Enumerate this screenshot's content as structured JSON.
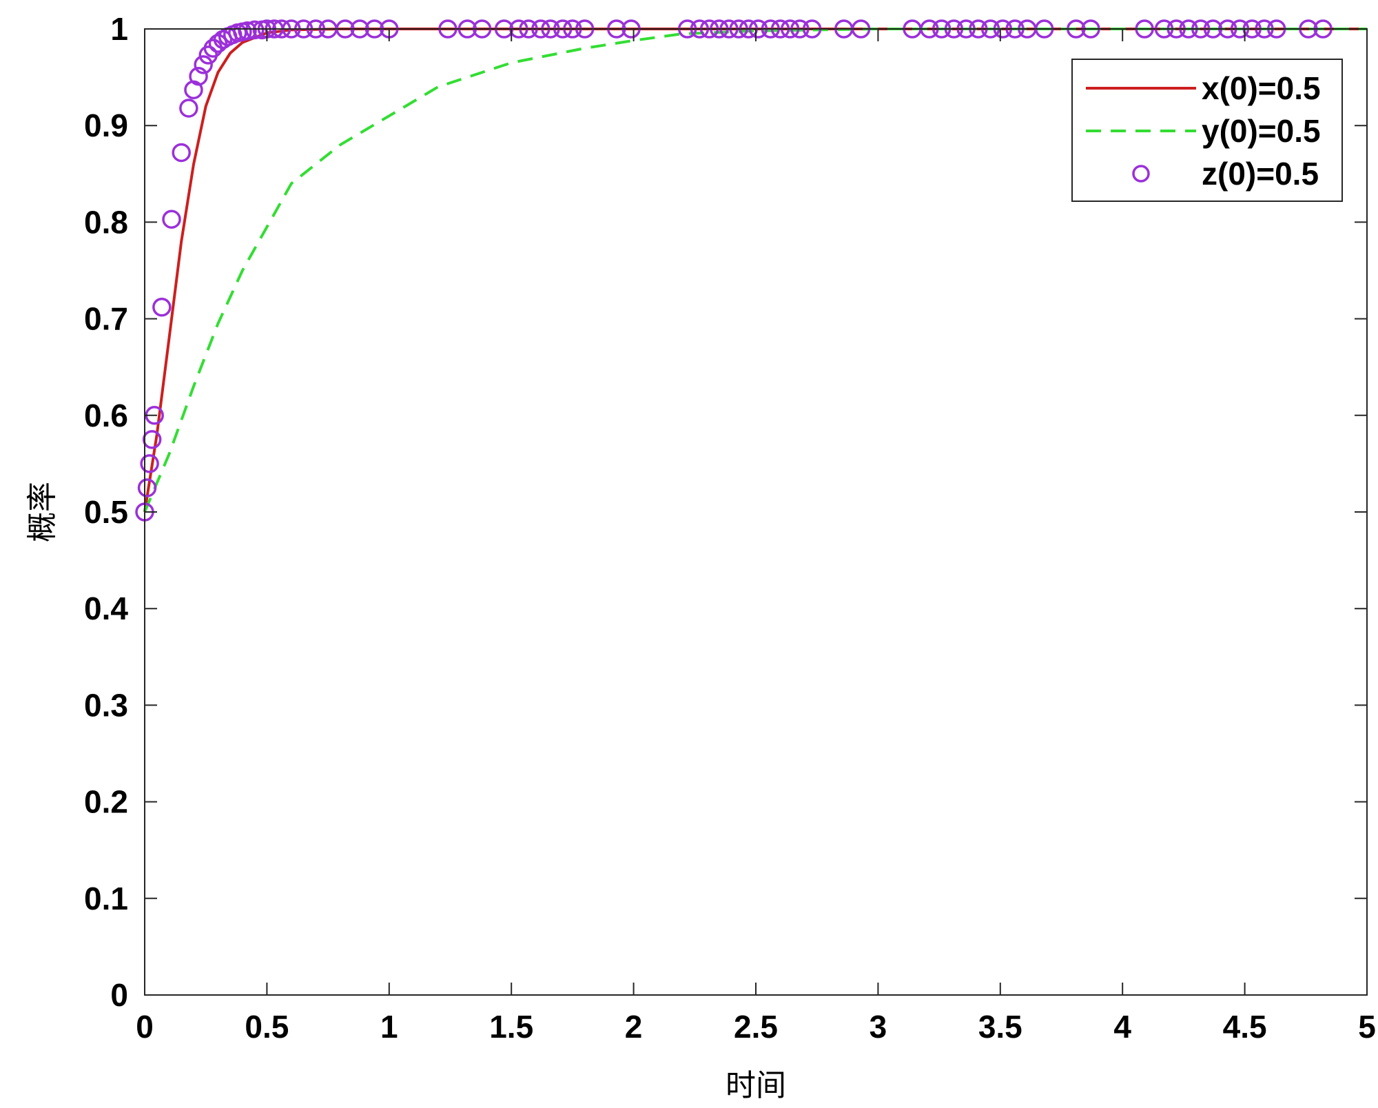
{
  "chart_data": {
    "type": "line",
    "title": "",
    "xlabel": "时间",
    "ylabel": "概率",
    "xlim": [
      0,
      5
    ],
    "ylim": [
      0,
      1
    ],
    "x_ticks": [
      "0",
      "0.5",
      "1",
      "1.5",
      "2",
      "2.5",
      "3",
      "3.5",
      "4",
      "4.5",
      "5"
    ],
    "y_ticks": [
      "0",
      "0.1",
      "0.2",
      "0.3",
      "0.4",
      "0.5",
      "0.6",
      "0.7",
      "0.8",
      "0.9",
      "1"
    ],
    "grid": false,
    "legend_position": "top-right",
    "series": [
      {
        "name": "x(0)=0.5",
        "style": "solid line",
        "color": "#cc1f1f",
        "points": [
          [
            0,
            0.5
          ],
          [
            0.05,
            0.58
          ],
          [
            0.1,
            0.68
          ],
          [
            0.15,
            0.78
          ],
          [
            0.2,
            0.86
          ],
          [
            0.25,
            0.92
          ],
          [
            0.3,
            0.955
          ],
          [
            0.35,
            0.975
          ],
          [
            0.4,
            0.986
          ],
          [
            0.5,
            0.996
          ],
          [
            0.6,
            0.999
          ],
          [
            0.8,
            1.0
          ],
          [
            1.0,
            1.0
          ],
          [
            2.0,
            1.0
          ],
          [
            3.0,
            1.0
          ],
          [
            4.0,
            1.0
          ],
          [
            5.0,
            1.0
          ]
        ]
      },
      {
        "name": "y(0)=0.5",
        "style": "dashed line",
        "color": "#33dd33",
        "points": [
          [
            0,
            0.5
          ],
          [
            0.1,
            0.56
          ],
          [
            0.2,
            0.63
          ],
          [
            0.3,
            0.695
          ],
          [
            0.4,
            0.75
          ],
          [
            0.5,
            0.795
          ],
          [
            0.6,
            0.84
          ],
          [
            0.8,
            0.88
          ],
          [
            1.0,
            0.91
          ],
          [
            1.2,
            0.94
          ],
          [
            1.5,
            0.965
          ],
          [
            1.8,
            0.98
          ],
          [
            2.0,
            0.988
          ],
          [
            2.2,
            0.995
          ],
          [
            2.5,
            0.998
          ],
          [
            3.0,
            1.0
          ],
          [
            4.0,
            1.0
          ],
          [
            5.0,
            1.0
          ]
        ]
      },
      {
        "name": "z(0)=0.5",
        "style": "circle markers",
        "color": "#9b30d9",
        "points": [
          [
            0,
            0.5
          ],
          [
            0.01,
            0.525
          ],
          [
            0.02,
            0.55
          ],
          [
            0.03,
            0.575
          ],
          [
            0.04,
            0.6
          ],
          [
            0.07,
            0.712
          ],
          [
            0.11,
            0.803
          ],
          [
            0.15,
            0.872
          ],
          [
            0.18,
            0.918
          ],
          [
            0.2,
            0.937
          ],
          [
            0.22,
            0.951
          ],
          [
            0.24,
            0.963
          ],
          [
            0.26,
            0.973
          ],
          [
            0.28,
            0.98
          ],
          [
            0.3,
            0.985
          ],
          [
            0.32,
            0.989
          ],
          [
            0.34,
            0.992
          ],
          [
            0.36,
            0.994
          ],
          [
            0.38,
            0.996
          ],
          [
            0.4,
            0.997
          ],
          [
            0.42,
            0.998
          ],
          [
            0.45,
            0.999
          ],
          [
            0.48,
            0.999
          ],
          [
            0.5,
            1.0
          ],
          [
            0.53,
            1.0
          ],
          [
            0.56,
            1.0
          ],
          [
            0.6,
            1.0
          ],
          [
            0.65,
            1.0
          ],
          [
            0.7,
            1.0
          ],
          [
            0.75,
            1.0
          ],
          [
            0.82,
            1.0
          ],
          [
            0.88,
            1.0
          ],
          [
            0.94,
            1.0
          ],
          [
            1.0,
            1.0
          ],
          [
            1.24,
            1.0
          ],
          [
            1.32,
            1.0
          ],
          [
            1.38,
            1.0
          ],
          [
            1.47,
            1.0
          ],
          [
            1.53,
            1.0
          ],
          [
            1.57,
            1.0
          ],
          [
            1.62,
            1.0
          ],
          [
            1.66,
            1.0
          ],
          [
            1.71,
            1.0
          ],
          [
            1.75,
            1.0
          ],
          [
            1.8,
            1.0
          ],
          [
            1.93,
            1.0
          ],
          [
            1.99,
            1.0
          ],
          [
            2.22,
            1.0
          ],
          [
            2.27,
            1.0
          ],
          [
            2.31,
            1.0
          ],
          [
            2.35,
            1.0
          ],
          [
            2.39,
            1.0
          ],
          [
            2.43,
            1.0
          ],
          [
            2.47,
            1.0
          ],
          [
            2.51,
            1.0
          ],
          [
            2.56,
            1.0
          ],
          [
            2.6,
            1.0
          ],
          [
            2.64,
            1.0
          ],
          [
            2.68,
            1.0
          ],
          [
            2.73,
            1.0
          ],
          [
            2.86,
            1.0
          ],
          [
            2.93,
            1.0
          ],
          [
            3.14,
            1.0
          ],
          [
            3.21,
            1.0
          ],
          [
            3.26,
            1.0
          ],
          [
            3.31,
            1.0
          ],
          [
            3.36,
            1.0
          ],
          [
            3.41,
            1.0
          ],
          [
            3.46,
            1.0
          ],
          [
            3.51,
            1.0
          ],
          [
            3.56,
            1.0
          ],
          [
            3.61,
            1.0
          ],
          [
            3.68,
            1.0
          ],
          [
            3.81,
            1.0
          ],
          [
            3.87,
            1.0
          ],
          [
            4.09,
            1.0
          ],
          [
            4.17,
            1.0
          ],
          [
            4.22,
            1.0
          ],
          [
            4.27,
            1.0
          ],
          [
            4.32,
            1.0
          ],
          [
            4.37,
            1.0
          ],
          [
            4.43,
            1.0
          ],
          [
            4.48,
            1.0
          ],
          [
            4.53,
            1.0
          ],
          [
            4.58,
            1.0
          ],
          [
            4.63,
            1.0
          ],
          [
            4.76,
            1.0
          ],
          [
            4.82,
            1.0
          ]
        ]
      }
    ]
  }
}
